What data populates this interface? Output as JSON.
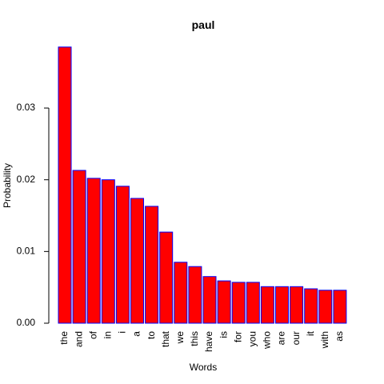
{
  "chart_data": {
    "type": "bar",
    "title": "paul",
    "xlabel": "Words",
    "ylabel": "Probability",
    "categories": [
      "the",
      "and",
      "of",
      "in",
      "i",
      "a",
      "to",
      "that",
      "we",
      "this",
      "have",
      "is",
      "for",
      "you",
      "who",
      "are",
      "our",
      "it",
      "with",
      "as"
    ],
    "values": [
      0.0385,
      0.0213,
      0.0202,
      0.02,
      0.0191,
      0.0174,
      0.0163,
      0.0127,
      0.0085,
      0.0079,
      0.0065,
      0.0059,
      0.0057,
      0.0057,
      0.0051,
      0.0051,
      0.0051,
      0.0048,
      0.0046,
      0.0046
    ],
    "yticks": [
      0.0,
      0.01,
      0.02,
      0.03
    ],
    "ytick_labels": [
      "0.00",
      "0.01",
      "0.02",
      "0.03"
    ],
    "ylim": [
      0,
      0.0385
    ],
    "bar_fill": "#ff0000",
    "bar_border": "#0000ff"
  }
}
